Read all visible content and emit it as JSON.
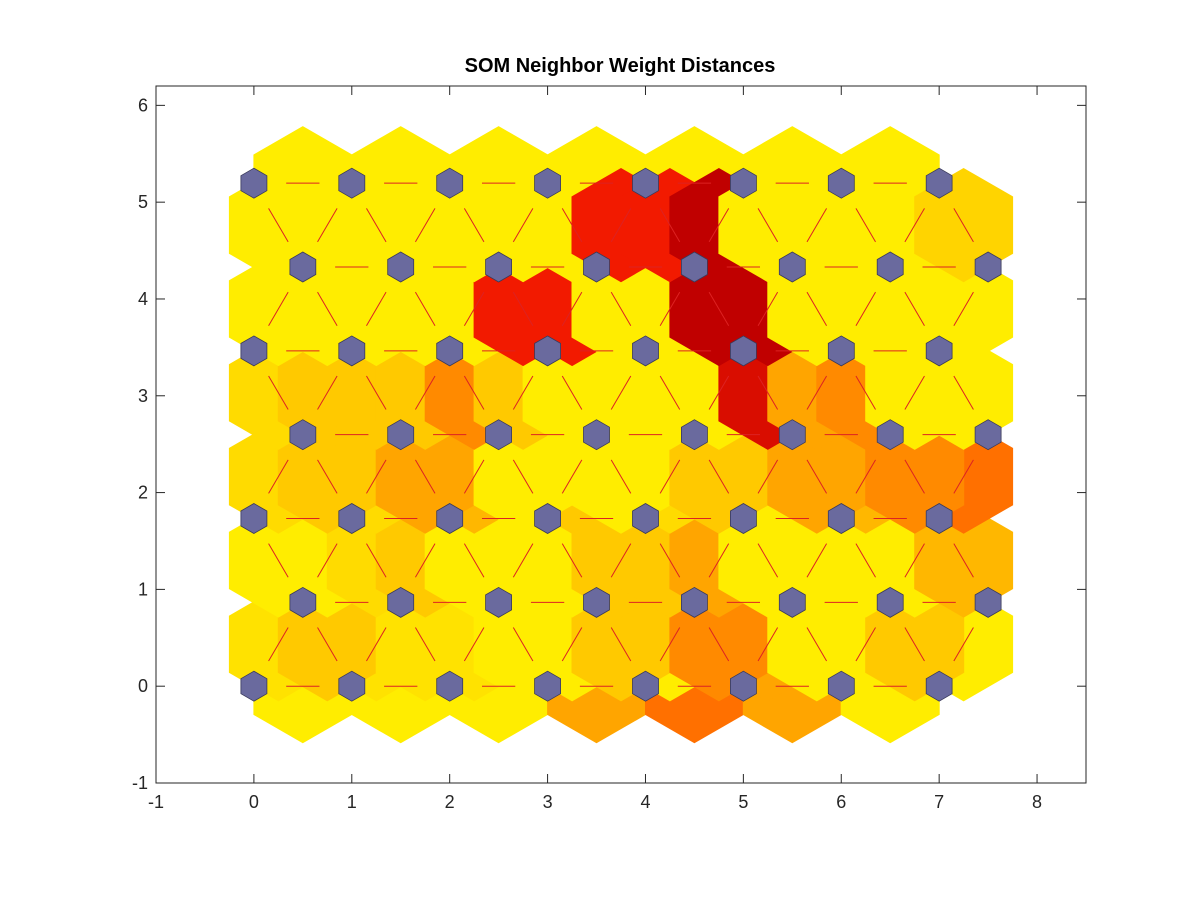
{
  "chart_data": {
    "type": "heatmap",
    "title": "SOM Neighbor Weight Distances",
    "xlim": [
      -1,
      8.5
    ],
    "ylim": [
      -1,
      6.2
    ],
    "xticks": [
      "-1",
      "0",
      "1",
      "2",
      "3",
      "4",
      "5",
      "6",
      "7",
      "8"
    ],
    "yticks": [
      "-1",
      "0",
      "1",
      "2",
      "3",
      "4",
      "5",
      "6"
    ],
    "grid": false,
    "neuron_rows": 7,
    "neuron_cols": 8,
    "neuron_color": "#6a6a9e",
    "edge_line_color": "#dd2222",
    "colormap_stops": [
      "#ffff00",
      "#ffa500",
      "#ff2000",
      "#c00000",
      "#000000"
    ],
    "horizontal_edges": [
      [
        0.05,
        0.05,
        0.05,
        0.25,
        0.35,
        0.25,
        0.05,
        0.05,
        0.05,
        0.05,
        0.05,
        0.05,
        0.05,
        0.05
      ],
      [
        0.1,
        0.05,
        0.05,
        0.05,
        0.05,
        0.15,
        0.2,
        0.3,
        0.4,
        0.1,
        0.05,
        0.05,
        0.05,
        0.05
      ],
      [
        0.05,
        0.05,
        0.05,
        0.1,
        0.05,
        0.1,
        0.15,
        0.15,
        0.2,
        0.1,
        0.05,
        0.1,
        0.2,
        0.05
      ],
      [
        0.05,
        0.05,
        0.05,
        0.05,
        0.35,
        0.15,
        0.1,
        0.05,
        0.05,
        0.6,
        0.25,
        0.25,
        0.2,
        0.05
      ],
      [
        0.1,
        0.1,
        0.1,
        0.25,
        0.35,
        0.1,
        0.05,
        0.05,
        0.05,
        0.15,
        0.05,
        0.05,
        0.05,
        0.05
      ],
      [
        0.05,
        0.05,
        0.05,
        0.05,
        0.05,
        0.05,
        0.05,
        0.05,
        0.05,
        0.05,
        0.05,
        0.05,
        0.05,
        0.05
      ],
      [
        0.05,
        0.05,
        0.05,
        0.05,
        0.05,
        0.05,
        0.05,
        1.0,
        0.05,
        0.05,
        0.05,
        0.05,
        0.05,
        0.15
      ]
    ],
    "diagonal_edges": [
      [
        0.08,
        0.08,
        0.15,
        0.08,
        0.08,
        0.05,
        0.05,
        0.05,
        0.15,
        0.25,
        0.3,
        0.05,
        0.05,
        0.05,
        0.15,
        0.3
      ],
      [
        0.05,
        0.05,
        0.1,
        0.15,
        0.05,
        0.05,
        0.05,
        0.15,
        0.15,
        0.25,
        0.05,
        0.05,
        0.05,
        0.05,
        0.2,
        0.25
      ],
      [
        0.1,
        0.1,
        0.15,
        0.2,
        0.25,
        0.15,
        0.05,
        0.1,
        0.05,
        0.05,
        0.15,
        0.2,
        0.25,
        0.35,
        0.3,
        0.25
      ],
      [
        0.1,
        0.15,
        0.15,
        0.15,
        0.3,
        0.15,
        0.05,
        0.05,
        0.05,
        0.05,
        0.65,
        0.25,
        0.3,
        0.05,
        0.05,
        0.05
      ],
      [
        0.05,
        0.05,
        0.05,
        0.05,
        0.05,
        0.55,
        0.55,
        0.05,
        0.05,
        0.75,
        0.75,
        0.05,
        0.05,
        0.05,
        0.05,
        0.05
      ],
      [
        0.05,
        0.05,
        0.05,
        0.05,
        0.05,
        0.05,
        0.05,
        0.55,
        0.55,
        0.75,
        0.05,
        0.05,
        0.05,
        0.05,
        0.12,
        0.12
      ]
    ]
  }
}
